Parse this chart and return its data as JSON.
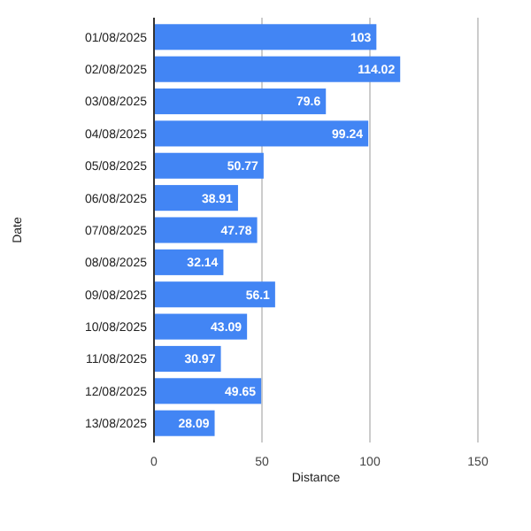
{
  "chart_data": {
    "type": "bar",
    "orientation": "horizontal",
    "xlabel": "Distance",
    "ylabel": "Date",
    "categories": [
      "01/08/2025",
      "02/08/2025",
      "03/08/2025",
      "04/08/2025",
      "05/08/2025",
      "06/08/2025",
      "07/08/2025",
      "08/08/2025",
      "09/08/2025",
      "10/08/2025",
      "11/08/2025",
      "12/08/2025",
      "13/08/2025"
    ],
    "values": [
      103,
      114.02,
      79.6,
      99.24,
      50.77,
      38.91,
      47.78,
      32.14,
      56.1,
      43.09,
      30.97,
      49.65,
      28.09
    ],
    "color": "#4285f4",
    "xlim": [
      0,
      150
    ],
    "xticks": [
      0,
      50,
      100,
      150
    ],
    "grid": "x",
    "data_labels": true
  }
}
